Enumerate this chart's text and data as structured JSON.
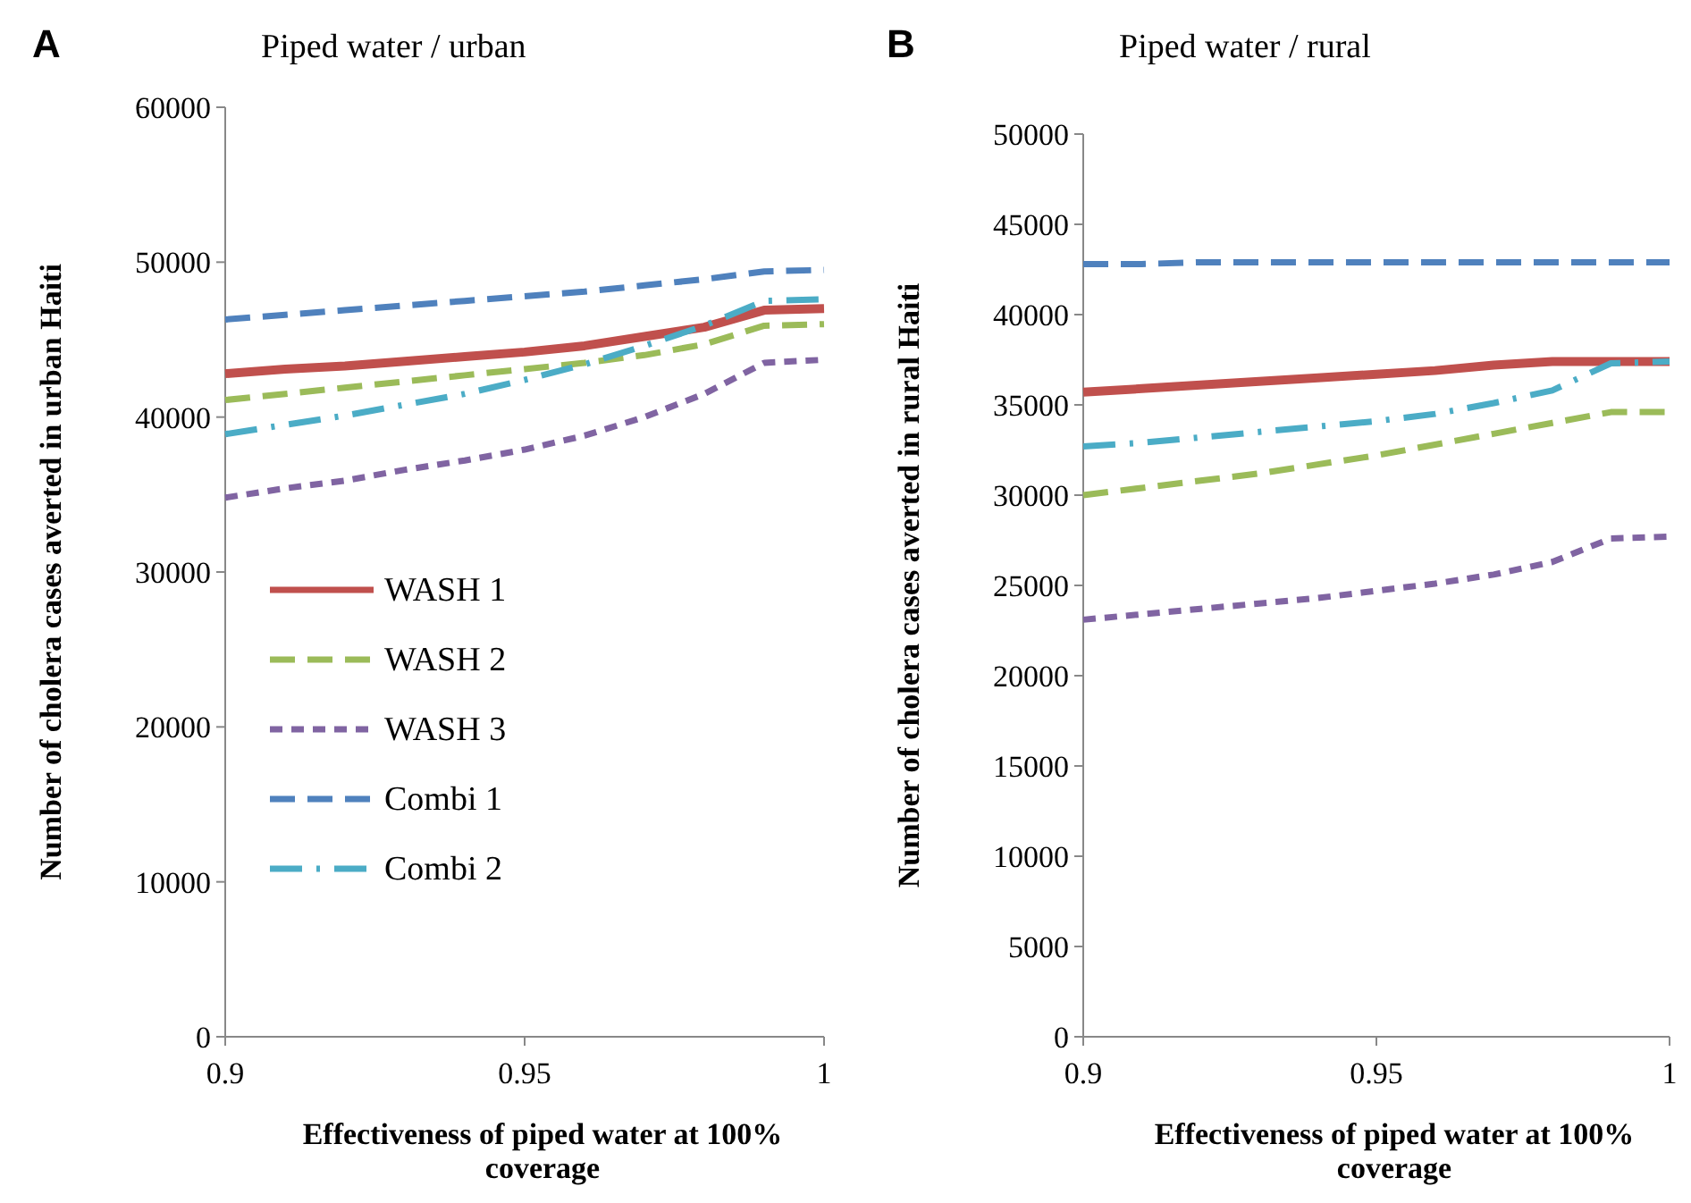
{
  "chart_data": [
    {
      "type": "line",
      "title": "Piped water / urban",
      "annotations": [
        "A"
      ],
      "xlabel": "Effectiveness of piped water at 100% coverage",
      "ylabel": "Number of cholera cases averted in urban Haiti",
      "x": [
        0.9,
        0.91,
        0.92,
        0.93,
        0.94,
        0.95,
        0.96,
        0.97,
        0.98,
        0.99,
        1
      ],
      "xlim": [
        0.9,
        1
      ],
      "xticks": [
        0.9,
        0.95,
        1
      ],
      "ylim": [
        0,
        60000
      ],
      "yticks": [
        0,
        10000,
        20000,
        30000,
        40000,
        50000,
        60000
      ],
      "grid": false,
      "legend": "left",
      "marker": "none",
      "series": [
        {
          "name": "WASH 1",
          "color": "#c0504d",
          "line_style": "solid",
          "values": [
            42800,
            43100,
            43300,
            43600,
            43900,
            44200,
            44600,
            45200,
            45800,
            46900,
            47000
          ]
        },
        {
          "name": "WASH 2",
          "color": "#9bbb59",
          "line_style": "dashed",
          "values": [
            41100,
            41500,
            41900,
            42300,
            42700,
            43100,
            43500,
            44000,
            44700,
            45900,
            46000
          ]
        },
        {
          "name": "WASH 3",
          "color": "#8064a2",
          "line_style": "dotted",
          "values": [
            34800,
            35400,
            35900,
            36600,
            37200,
            37900,
            38800,
            40000,
            41500,
            43500,
            43700
          ]
        },
        {
          "name": "Combi 1",
          "color": "#4f81bd",
          "line_style": "dashed",
          "values": [
            46300,
            46600,
            46900,
            47200,
            47500,
            47800,
            48100,
            48500,
            48900,
            49400,
            49500
          ]
        },
        {
          "name": "Combi 2",
          "color": "#4bacc6",
          "line_style": "dashdot",
          "values": [
            38900,
            39500,
            40100,
            40800,
            41500,
            42400,
            43400,
            44600,
            45900,
            47500,
            47600
          ]
        }
      ]
    },
    {
      "type": "line",
      "title": "Piped water / rural",
      "annotations": [
        "B"
      ],
      "xlabel": "Effectiveness of piped water at 100% coverage",
      "ylabel": "Number of cholera cases averted in rural Haiti",
      "x": [
        0.9,
        0.91,
        0.92,
        0.93,
        0.94,
        0.95,
        0.96,
        0.97,
        0.98,
        0.99,
        1
      ],
      "xlim": [
        0.9,
        1
      ],
      "xticks": [
        0.9,
        0.95,
        1
      ],
      "ylim": [
        0,
        50000
      ],
      "yticks": [
        0,
        5000,
        10000,
        15000,
        20000,
        25000,
        30000,
        35000,
        40000,
        45000,
        50000
      ],
      "grid": false,
      "legend": false,
      "marker": "none",
      "series": [
        {
          "color": "#c0504d",
          "line_style": "solid",
          "values": [
            35700,
            35900,
            36100,
            36300,
            36500,
            36700,
            36900,
            37200,
            37400,
            37400,
            37400
          ]
        },
        {
          "color": "#9bbb59",
          "line_style": "dashed",
          "values": [
            30000,
            30400,
            30800,
            31200,
            31700,
            32200,
            32800,
            33400,
            34000,
            34600,
            34600
          ]
        },
        {
          "color": "#8064a2",
          "line_style": "dotted",
          "values": [
            23100,
            23400,
            23700,
            24000,
            24300,
            24700,
            25100,
            25600,
            26300,
            27600,
            27700
          ]
        },
        {
          "color": "#4f81bd",
          "line_style": "dashed",
          "values": [
            42800,
            42800,
            42900,
            42900,
            42900,
            42900,
            42900,
            42900,
            42900,
            42900,
            42900
          ]
        },
        {
          "color": "#4bacc6",
          "line_style": "dashdot",
          "values": [
            32700,
            32900,
            33200,
            33500,
            33800,
            34100,
            34500,
            35100,
            35800,
            37300,
            37400
          ]
        }
      ]
    }
  ]
}
